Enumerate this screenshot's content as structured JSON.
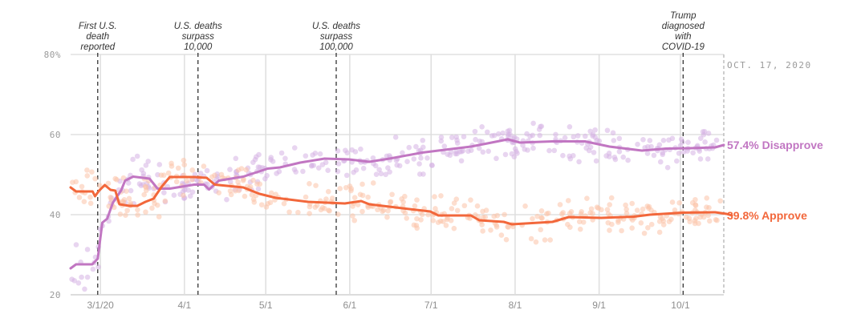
{
  "chart_data": {
    "type": "line",
    "title": "",
    "xlabel": "",
    "ylabel": "",
    "ylim": [
      20,
      80
    ],
    "yticks": [
      {
        "value": 80,
        "label": "80%"
      },
      {
        "value": 60,
        "label": "60"
      },
      {
        "value": 40,
        "label": "40"
      },
      {
        "value": 20,
        "label": "20"
      }
    ],
    "x_range": [
      "2020-02-19",
      "2020-10-17"
    ],
    "xticks": [
      {
        "date": "2020-03-01",
        "label": "3/1/20"
      },
      {
        "date": "2020-04-01",
        "label": "4/1"
      },
      {
        "date": "2020-05-01",
        "label": "5/1"
      },
      {
        "date": "2020-06-01",
        "label": "6/1"
      },
      {
        "date": "2020-07-01",
        "label": "7/1"
      },
      {
        "date": "2020-08-01",
        "label": "8/1"
      },
      {
        "date": "2020-09-01",
        "label": "9/1"
      },
      {
        "date": "2020-10-01",
        "label": "10/1"
      }
    ],
    "grid": true,
    "current_date_label": "OCT. 17, 2020",
    "annotations": [
      {
        "date": "2020-02-29",
        "lines": [
          "First U.S.",
          "death",
          "reported"
        ]
      },
      {
        "date": "2020-04-06",
        "lines": [
          "U.S. deaths",
          "surpass",
          "10,000"
        ]
      },
      {
        "date": "2020-05-27",
        "lines": [
          "U.S. deaths",
          "surpass",
          "100,000"
        ]
      },
      {
        "date": "2020-10-02",
        "lines": [
          "Trump",
          "diagnosed",
          "with",
          "COVID-19"
        ]
      }
    ],
    "series": [
      {
        "name": "Disapprove",
        "color": "#c176c2",
        "dot_color": "#d6b3e3",
        "end_label": "57.4% Disapprove",
        "final_value": 57.4,
        "points": [
          [
            0,
            26.6
          ],
          [
            2,
            27.6
          ],
          [
            8,
            27.6
          ],
          [
            10,
            29.0
          ],
          [
            11.7,
            38.0
          ],
          [
            13.5,
            39.0
          ],
          [
            15.6,
            43.0
          ],
          [
            18.6,
            46.0
          ],
          [
            20.1,
            48.5
          ],
          [
            23.1,
            49.5
          ],
          [
            29.1,
            49.0
          ],
          [
            32.1,
            46.5
          ],
          [
            36.6,
            46.5
          ],
          [
            45.6,
            47.5
          ],
          [
            49.2,
            47.5
          ],
          [
            51.1,
            46.3
          ],
          [
            54.7,
            48.5
          ],
          [
            63.7,
            49.5
          ],
          [
            72.7,
            51.5
          ],
          [
            77.2,
            51.8
          ],
          [
            84.7,
            53.0
          ],
          [
            93.7,
            54.0
          ],
          [
            102.7,
            53.8
          ],
          [
            110.2,
            53.2
          ],
          [
            117.7,
            54.0
          ],
          [
            129.7,
            55.5
          ],
          [
            135.7,
            56.0
          ],
          [
            147.7,
            57.0
          ],
          [
            153.8,
            57.8
          ],
          [
            159.8,
            58.6
          ],
          [
            161.3,
            58.8
          ],
          [
            165.8,
            58.0
          ],
          [
            177.8,
            58.3
          ],
          [
            189.8,
            58.3
          ],
          [
            198.8,
            57.0
          ],
          [
            210.8,
            56.0
          ],
          [
            219.8,
            56.5
          ],
          [
            228.8,
            56.6
          ],
          [
            237.8,
            56.8
          ],
          [
            241,
            57.4
          ]
        ]
      },
      {
        "name": "Approve",
        "color": "#f2673b",
        "dot_color": "#fbc2a8",
        "end_label": "39.8% Approve",
        "final_value": 39.8,
        "points": [
          [
            0,
            46.8
          ],
          [
            2,
            45.8
          ],
          [
            8.1,
            45.8
          ],
          [
            9,
            44.6
          ],
          [
            10.5,
            46.0
          ],
          [
            12.6,
            47.4
          ],
          [
            14.7,
            46.2
          ],
          [
            16.5,
            46.0
          ],
          [
            18,
            42.6
          ],
          [
            21.6,
            42.2
          ],
          [
            24.6,
            42.2
          ],
          [
            27.6,
            43.2
          ],
          [
            30.6,
            44.0
          ],
          [
            33.6,
            47.0
          ],
          [
            36.6,
            49.4
          ],
          [
            45.6,
            49.4
          ],
          [
            50.2,
            49.2
          ],
          [
            53.2,
            47.5
          ],
          [
            63.7,
            46.8
          ],
          [
            69.7,
            45.2
          ],
          [
            75.7,
            44.2
          ],
          [
            87.7,
            43.2
          ],
          [
            101.2,
            42.8
          ],
          [
            107.2,
            43.4
          ],
          [
            110.2,
            42.6
          ],
          [
            123.7,
            41.5
          ],
          [
            132.7,
            40.8
          ],
          [
            135.7,
            39.8
          ],
          [
            147.7,
            39.8
          ],
          [
            150.8,
            38.6
          ],
          [
            159.8,
            38.2
          ],
          [
            162.8,
            37.6
          ],
          [
            177.8,
            38.2
          ],
          [
            183.8,
            39.4
          ],
          [
            195.8,
            39.2
          ],
          [
            207.8,
            39.5
          ],
          [
            213.8,
            40.0
          ],
          [
            225.8,
            40.5
          ],
          [
            237.8,
            40.6
          ],
          [
            242,
            40.2
          ],
          [
            244,
            39.8
          ]
        ]
      }
    ]
  }
}
